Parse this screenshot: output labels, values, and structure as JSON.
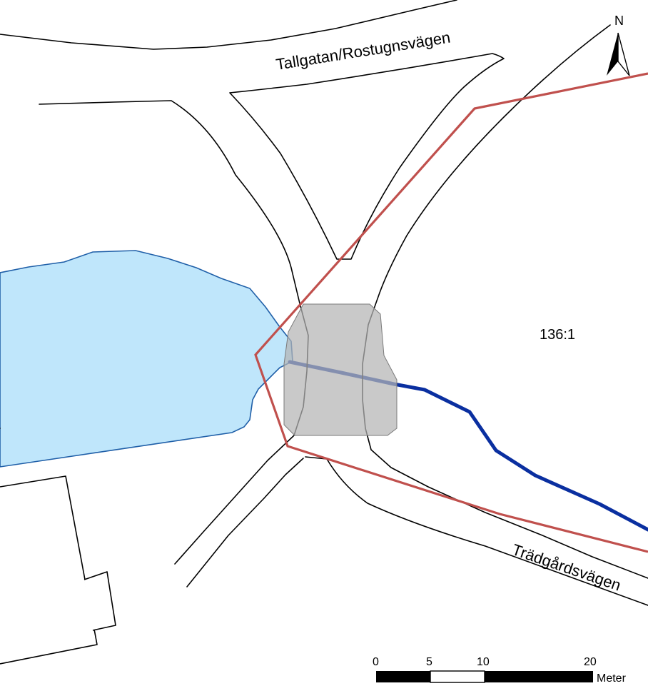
{
  "map": {
    "road_labels": {
      "north": "Tallgatan/Rostugnsvägen",
      "southeast": "Trädgårdsvägen"
    },
    "parcel_label": "136:1",
    "north_arrow": {
      "letter": "N",
      "icon": "north-arrow-icon"
    },
    "scale_bar": {
      "ticks": [
        "0",
        "5",
        "10",
        "20"
      ],
      "unit": "Meter"
    },
    "colors": {
      "water_fill": "#bfe6fb",
      "water_outline": "#1f5fa8",
      "stream": "#0a2fa0",
      "property_boundary": "#c0504d",
      "crossing_area": "#b4b4b4",
      "roads": "#000000"
    }
  }
}
